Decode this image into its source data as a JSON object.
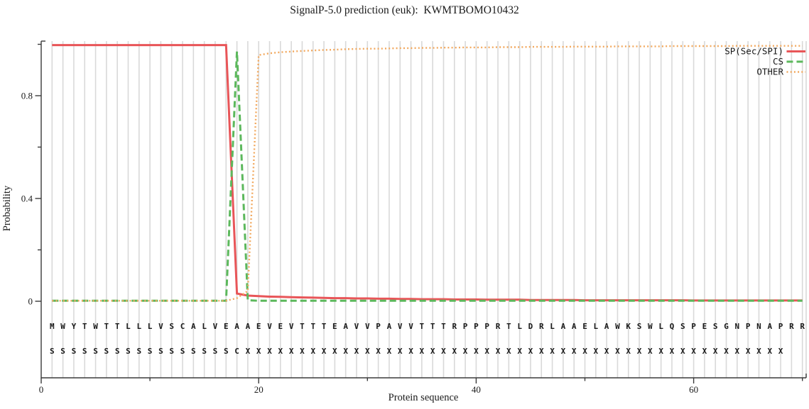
{
  "title": "SignalP-5.0 prediction (euk):  KWMTBOMO10432",
  "chart_data": {
    "type": "line",
    "title": "SignalP-5.0 prediction (euk):  KWMTBOMO10432",
    "xlabel": "Protein sequence",
    "ylabel": "Probability",
    "xlim": [
      0,
      70.4
    ],
    "ylim": [
      0,
      1.012
    ],
    "x_major_ticks": [
      0,
      20,
      40,
      60
    ],
    "x_minor_ticks": [
      10,
      30,
      50,
      70
    ],
    "y_major_ticks": [
      0,
      0.4,
      0.8
    ],
    "y_minor_ticks": [
      0.2,
      0.6,
      1.0
    ],
    "grid": "vertical line at every residue position",
    "legend_position": "top-right",
    "x_start": 1,
    "sequence": "MWYTWTTLLLVSCALVEAAEVEVTTTEAVVPAVVTTTRPPPRTLDRLAAELAWKSWLQSPESGNPNAPRR",
    "annotation": "SSSSSSSSSSSSSSSSSCXXXXXXXXXXXXXXXXXXXXXXXXXXXXXXXXXXXXXXXXXXXXXXXXXX",
    "series": [
      {
        "name": "SP(Sec/SPI)",
        "color": "#e85558",
        "style": "solid",
        "values": [
          0.997,
          0.997,
          0.997,
          0.997,
          0.997,
          0.997,
          0.997,
          0.997,
          0.997,
          0.997,
          0.997,
          0.997,
          0.997,
          0.997,
          0.997,
          0.997,
          0.997,
          0.03,
          0.022,
          0.02,
          0.018,
          0.017,
          0.016,
          0.015,
          0.014,
          0.013,
          0.012,
          0.012,
          0.011,
          0.011,
          0.01,
          0.01,
          0.009,
          0.009,
          0.008,
          0.008,
          0.008,
          0.007,
          0.007,
          0.007,
          0.006,
          0.006,
          0.006,
          0.006,
          0.005,
          0.005,
          0.005,
          0.005,
          0.005,
          0.004,
          0.004,
          0.004,
          0.004,
          0.004,
          0.004,
          0.004,
          0.004,
          0.004,
          0.004,
          0.003,
          0.003,
          0.003,
          0.003,
          0.003,
          0.003,
          0.003,
          0.003,
          0.003,
          0.003,
          0.003
        ]
      },
      {
        "name": "CS",
        "color": "#5cb85c",
        "style": "dashed",
        "values": [
          0.002,
          0.002,
          0.002,
          0.002,
          0.002,
          0.002,
          0.002,
          0.002,
          0.002,
          0.002,
          0.002,
          0.002,
          0.002,
          0.002,
          0.002,
          0.002,
          0.002,
          0.972,
          0.004,
          0.002,
          0.002,
          0.002,
          0.002,
          0.002,
          0.002,
          0.002,
          0.002,
          0.002,
          0.002,
          0.002,
          0.002,
          0.002,
          0.002,
          0.002,
          0.002,
          0.002,
          0.002,
          0.002,
          0.002,
          0.002,
          0.002,
          0.002,
          0.002,
          0.002,
          0.002,
          0.002,
          0.002,
          0.002,
          0.002,
          0.002,
          0.002,
          0.002,
          0.002,
          0.002,
          0.002,
          0.002,
          0.002,
          0.002,
          0.002,
          0.002,
          0.002,
          0.002,
          0.002,
          0.002,
          0.002,
          0.002,
          0.002,
          0.002,
          0.002,
          0.002
        ]
      },
      {
        "name": "OTHER",
        "color": "#f2a95f",
        "style": "dotted",
        "values": [
          0.002,
          0.002,
          0.002,
          0.002,
          0.002,
          0.002,
          0.002,
          0.002,
          0.002,
          0.002,
          0.002,
          0.002,
          0.002,
          0.002,
          0.002,
          0.002,
          0.002,
          0.012,
          0.04,
          0.958,
          0.965,
          0.969,
          0.972,
          0.974,
          0.976,
          0.978,
          0.979,
          0.981,
          0.982,
          0.983,
          0.983,
          0.984,
          0.985,
          0.985,
          0.986,
          0.986,
          0.987,
          0.987,
          0.988,
          0.988,
          0.988,
          0.989,
          0.989,
          0.989,
          0.99,
          0.99,
          0.99,
          0.99,
          0.991,
          0.991,
          0.991,
          0.991,
          0.992,
          0.992,
          0.992,
          0.992,
          0.992,
          0.993,
          0.993,
          0.993,
          0.993,
          0.993,
          0.993,
          0.994,
          0.994,
          0.994,
          0.994,
          0.994,
          0.994,
          0.994
        ]
      }
    ],
    "colors": {
      "grid": "#d9d9d9",
      "axis": "#3a3a3a",
      "text": "#1a1a1a"
    }
  }
}
